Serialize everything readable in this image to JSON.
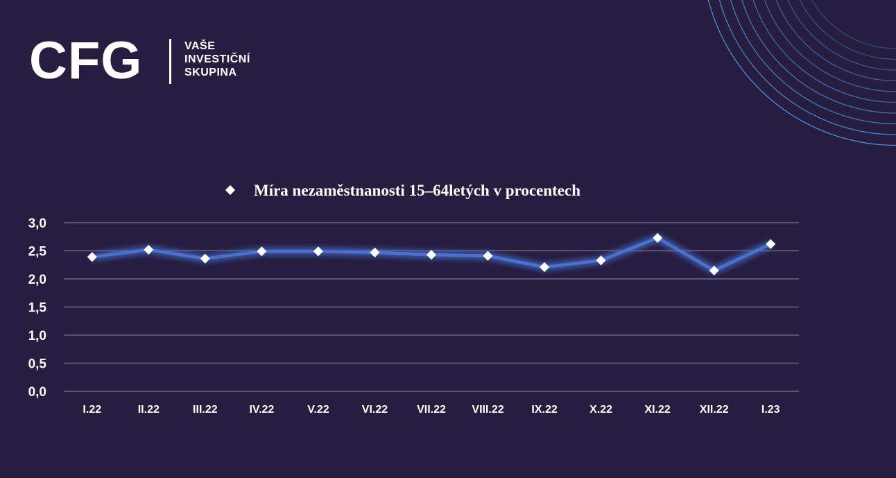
{
  "brand": {
    "mark": "CFG",
    "tagline": [
      "VAŠE",
      "INVESTIČNÍ",
      "SKUPINA"
    ]
  },
  "colors": {
    "background": "#271d40",
    "line": "#4a72d0",
    "marker": "#ffffff",
    "grid": "#6b6580",
    "arcs": "#4a9be8"
  },
  "chart_data": {
    "type": "line",
    "categories": [
      "I.22",
      "II.22",
      "III.22",
      "IV.22",
      "V.22",
      "VI.22",
      "VII.22",
      "VIII.22",
      "IX.22",
      "X.22",
      "XI.22",
      "XII.22",
      "I.23"
    ],
    "series": [
      {
        "name": "Míra nezaměstnanosti 15–64letých v procentech",
        "values": [
          2.39,
          2.52,
          2.36,
          2.49,
          2.49,
          2.47,
          2.43,
          2.41,
          2.21,
          2.33,
          2.73,
          2.15,
          2.62
        ]
      }
    ],
    "y_ticks": [
      "3,0",
      "2,5",
      "2,0",
      "1,5",
      "1,0",
      "0,5",
      "0,0"
    ],
    "ylim": [
      0,
      3
    ],
    "grid": true,
    "legend_position": "top-center",
    "marker": "diamond",
    "title": "",
    "xlabel": "",
    "ylabel": ""
  }
}
